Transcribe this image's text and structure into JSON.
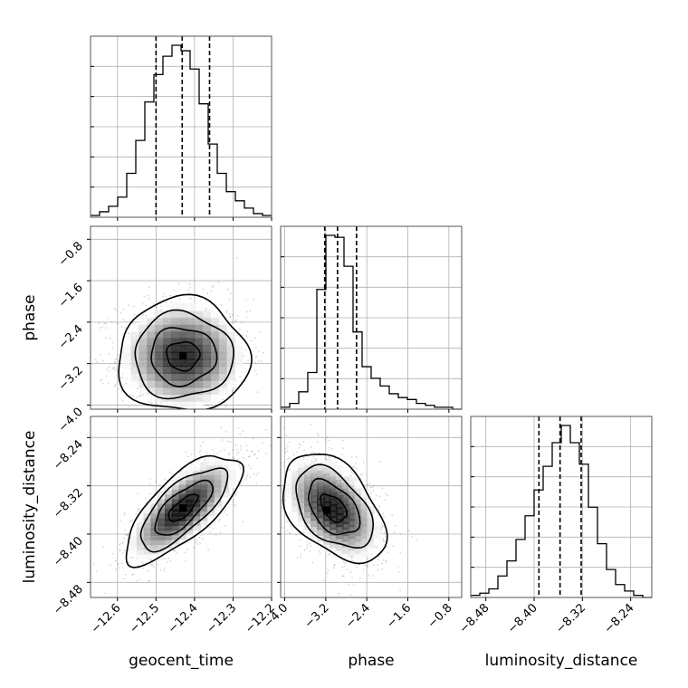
{
  "chart_data": {
    "type": "corner",
    "parameters": [
      "geocent_time",
      "phase",
      "luminosity_distance"
    ],
    "axis_labels": {
      "geocent_time": "geocent_time",
      "phase": "phase",
      "luminosity_distance": "luminosity_distance"
    },
    "ranges": {
      "geocent_time": [
        -12.67,
        -12.2
      ],
      "phase": [
        -4.08,
        -0.55
      ],
      "luminosity_distance": [
        -8.505,
        -8.205
      ]
    },
    "ticks": {
      "geocent_time": [
        -12.6,
        -12.5,
        -12.4,
        -12.3,
        -12.2
      ],
      "phase": [
        -4.0,
        -3.2,
        -2.4,
        -1.6,
        -0.8
      ],
      "luminosity_distance": [
        -8.48,
        -8.4,
        -8.32,
        -8.24
      ]
    },
    "tick_labels": {
      "geocent_time": [
        "−12.6",
        "−12.5",
        "−12.4",
        "−12.3",
        "−12.2"
      ],
      "phase": [
        "−4.0",
        "−3.2",
        "−2.4",
        "−1.6",
        "−0.8"
      ],
      "luminosity_distance": [
        "−8.48",
        "−8.40",
        "−8.32",
        "−8.24"
      ]
    },
    "grid": true,
    "quantiles": {
      "geocent_time": [
        -12.5,
        -12.432,
        -12.361
      ],
      "phase": [
        -3.22,
        -2.97,
        -2.6
      ],
      "luminosity_distance": [
        -8.392,
        -8.357,
        -8.322
      ]
    },
    "histograms": {
      "geocent_time": {
        "edges": [
          -12.67,
          -12.6465,
          -12.623,
          -12.5995,
          -12.576,
          -12.5525,
          -12.529,
          -12.5055,
          -12.482,
          -12.4585,
          -12.435,
          -12.4115,
          -12.388,
          -12.3645,
          -12.341,
          -12.3175,
          -12.294,
          -12.2705,
          -12.247,
          -12.2235,
          -12.2
        ],
        "counts": [
          1,
          3,
          6,
          11,
          24,
          42,
          63,
          78,
          88,
          94,
          91,
          81,
          62,
          40,
          24,
          14,
          9,
          5,
          2,
          1
        ]
      },
      "phase": {
        "edges": [
          -4.08,
          -3.9035,
          -3.727,
          -3.5505,
          -3.374,
          -3.1975,
          -3.021,
          -2.8445,
          -2.668,
          -2.4915,
          -2.315,
          -2.1385,
          -1.962,
          -1.7855,
          -1.609,
          -1.4325,
          -1.256,
          -1.0795,
          -0.903,
          -0.7265,
          -0.55
        ],
        "counts": [
          1,
          3,
          9,
          19,
          62,
          90,
          89,
          74,
          40,
          22,
          16,
          12,
          8,
          6,
          5,
          3,
          2,
          1,
          1,
          0
        ]
      },
      "luminosity_distance": {
        "edges": [
          -8.505,
          -8.49,
          -8.475,
          -8.46,
          -8.445,
          -8.43,
          -8.415,
          -8.4,
          -8.385,
          -8.37,
          -8.355,
          -8.34,
          -8.325,
          -8.31,
          -8.295,
          -8.28,
          -8.265,
          -8.25,
          -8.235,
          -8.22,
          -8.205
        ],
        "counts": [
          1,
          2,
          4,
          10,
          17,
          27,
          38,
          50,
          61,
          72,
          80,
          72,
          62,
          42,
          25,
          13,
          6,
          3,
          1,
          0
        ]
      }
    },
    "pairs": [
      {
        "x": "geocent_time",
        "y": "phase",
        "center": [
          -12.43,
          -3.05
        ],
        "sigma": [
          0.085,
          0.55
        ],
        "correlation": 0.0,
        "peak": [
          -12.43,
          -3.05
        ],
        "n_points": 1400
      },
      {
        "x": "geocent_time",
        "y": "luminosity_distance",
        "center": [
          -12.43,
          -8.357
        ],
        "sigma": [
          0.075,
          0.045
        ],
        "correlation": 0.72,
        "peak": [
          -12.43,
          -8.357
        ],
        "n_points": 1400
      },
      {
        "x": "phase",
        "y": "luminosity_distance",
        "center": [
          -3.05,
          -8.357
        ],
        "sigma": [
          0.5,
          0.045
        ],
        "correlation": -0.45,
        "peak": [
          -3.18,
          -8.36
        ],
        "n_points": 1400
      }
    ],
    "contour_levels_sigma": [
      0.5,
      1.0,
      1.5,
      2.0
    ]
  }
}
